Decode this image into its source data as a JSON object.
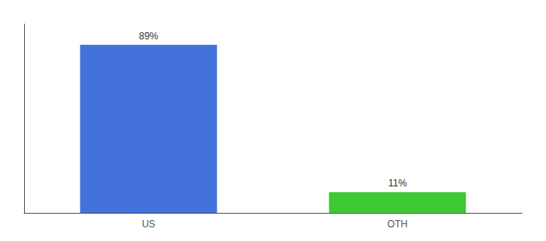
{
  "chart_data": {
    "type": "bar",
    "categories": [
      "US",
      "OTH"
    ],
    "values": [
      89,
      11
    ],
    "value_labels": [
      "89%",
      "11%"
    ],
    "data_labels": true,
    "colors": [
      "#4472db",
      "#3ec832"
    ],
    "ylim": [
      0,
      100
    ],
    "yticks": [],
    "grid": false,
    "tick_labels": "x"
  }
}
